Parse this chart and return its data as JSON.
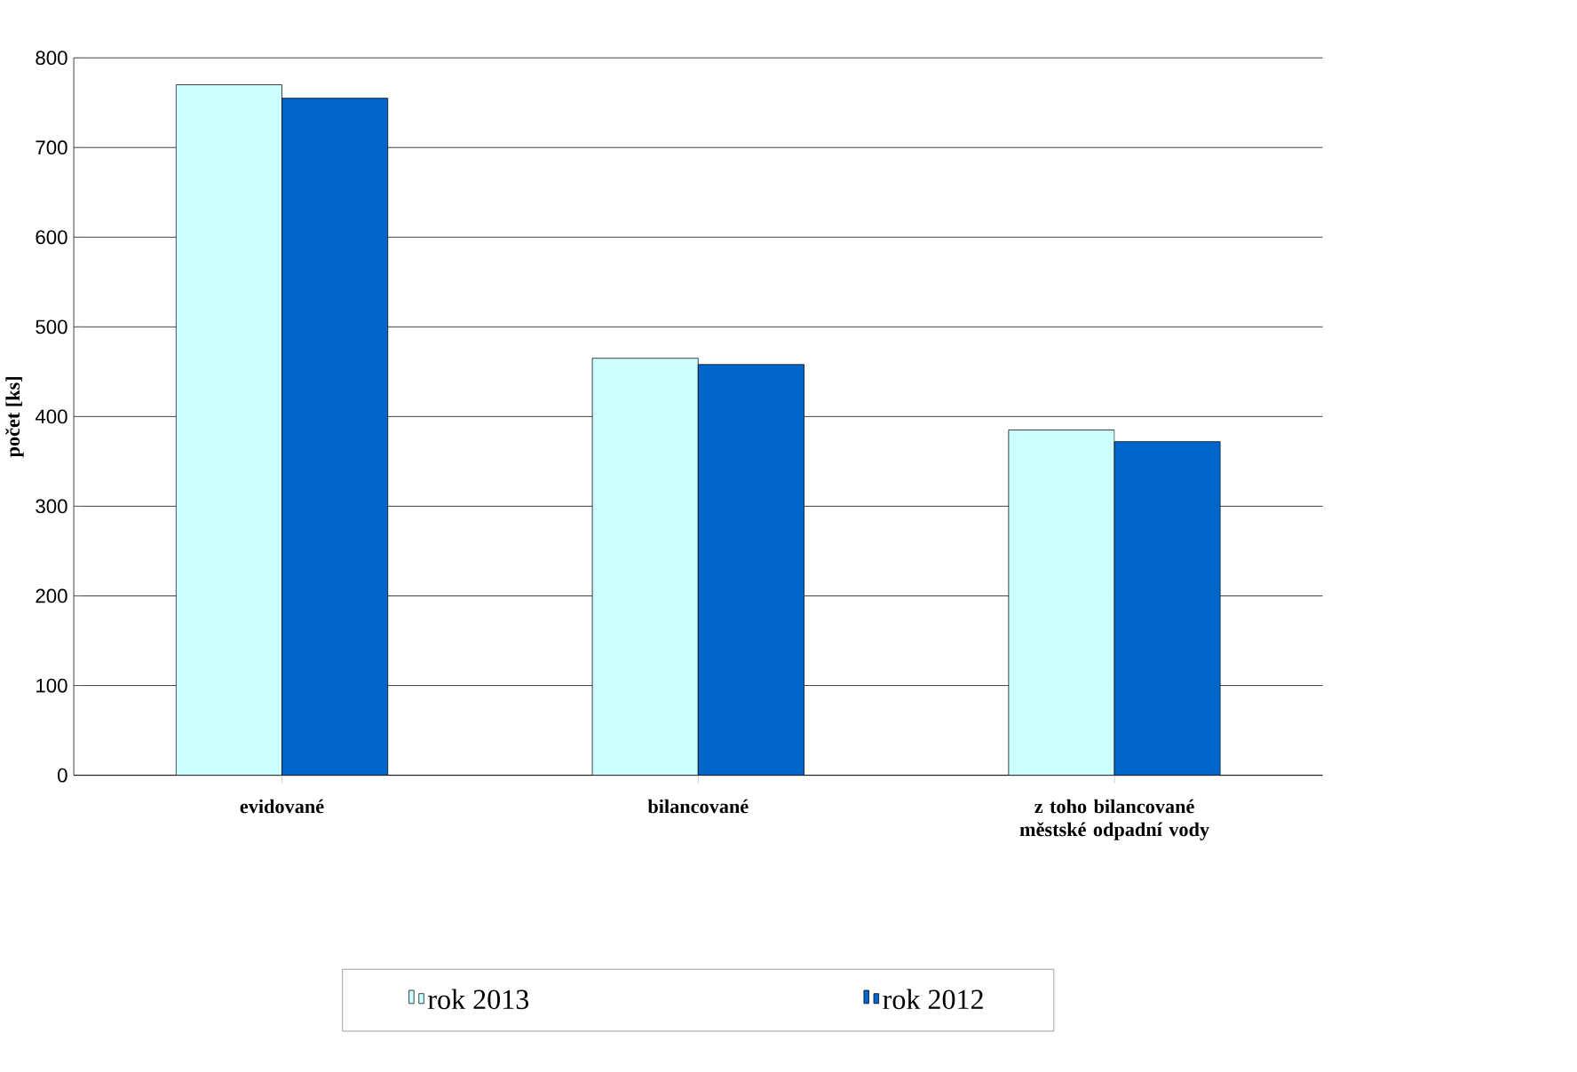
{
  "chart_data": {
    "type": "bar",
    "ylabel": "počet [ks]",
    "categories": [
      "evidované",
      "bilancované",
      "z toho bilancované městské odpadní vody"
    ],
    "series": [
      {
        "name": "rok 2013",
        "color": "#ccffff",
        "values": [
          770,
          465,
          385
        ]
      },
      {
        "name": "rok 2012",
        "color": "#0066cc",
        "values": [
          755,
          458,
          372
        ]
      }
    ],
    "ylim": [
      0,
      800
    ],
    "yticks": [
      0,
      100,
      200,
      300,
      400,
      500,
      600,
      700,
      800
    ],
    "grid": "y",
    "legend": "bottom"
  }
}
